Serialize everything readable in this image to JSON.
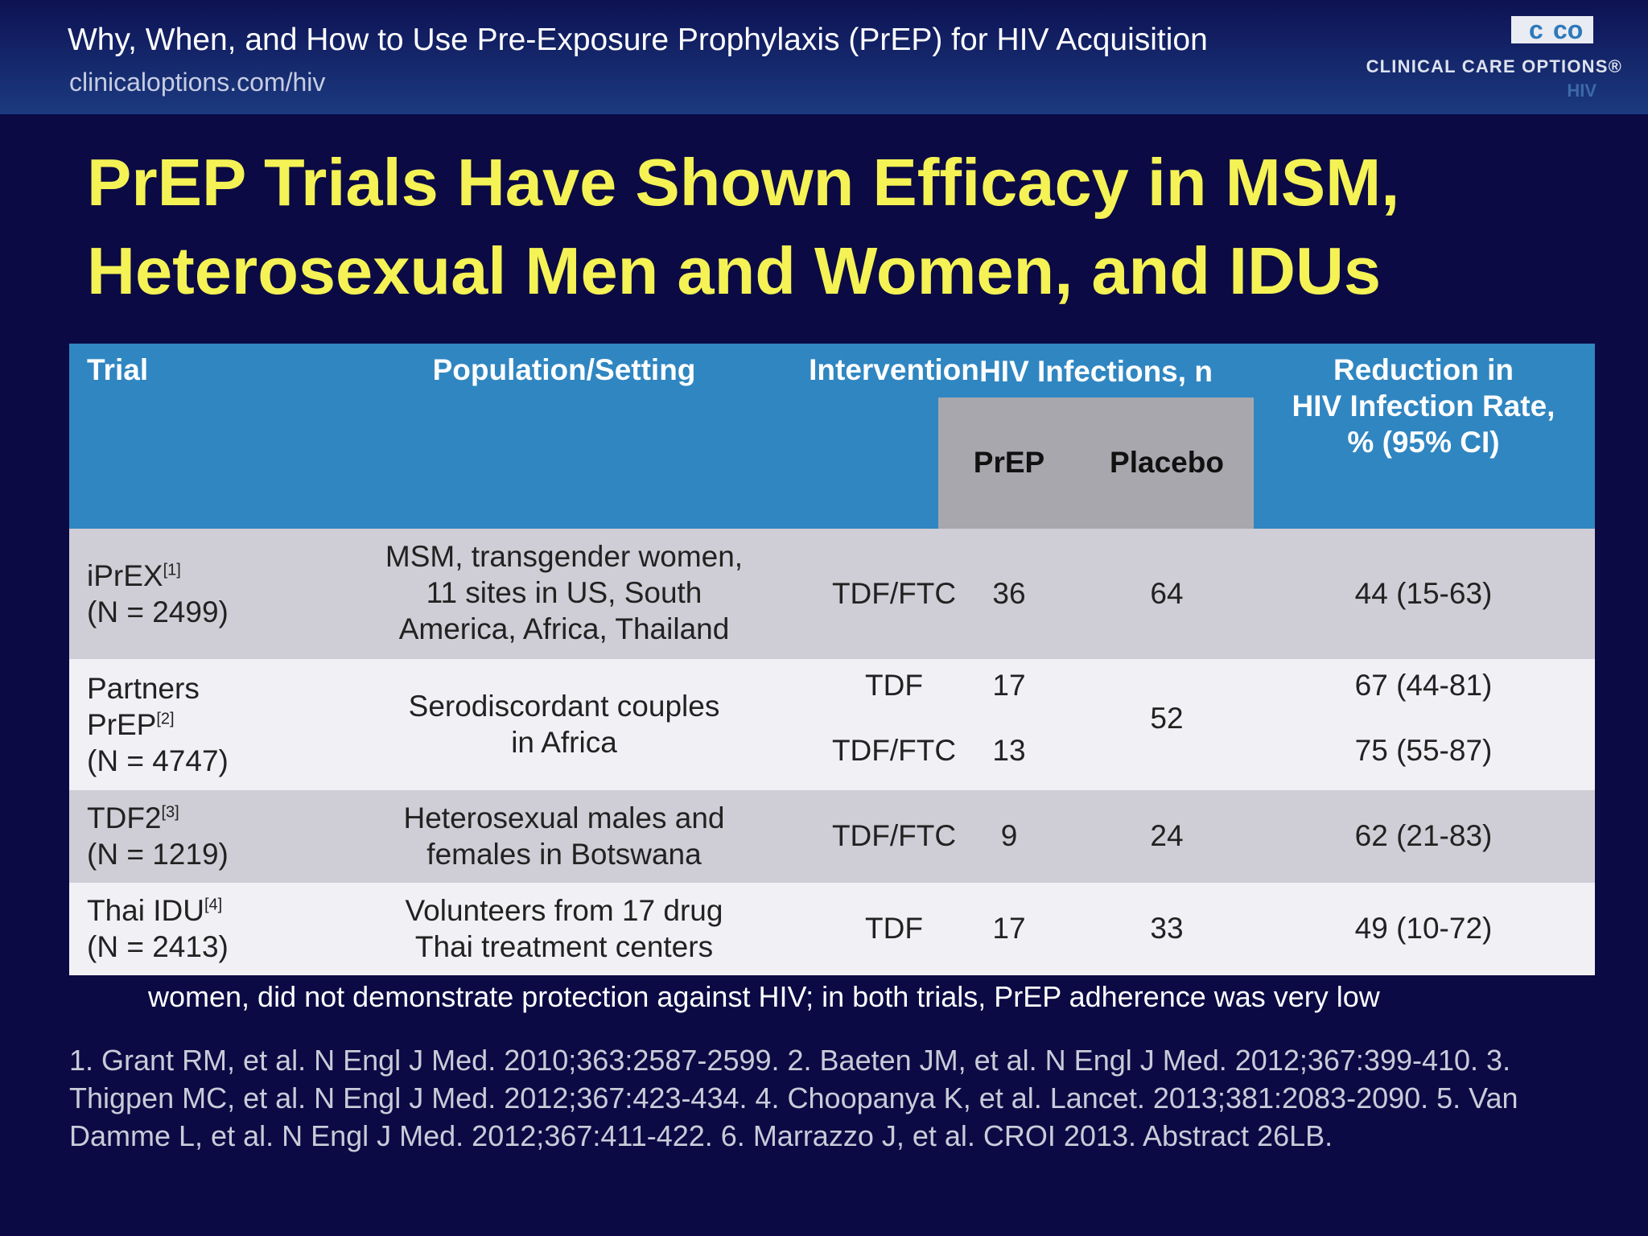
{
  "header": {
    "title": "Why, When, and How to Use Pre-Exposure Prophylaxis (PrEP) for HIV Acquisition",
    "url": "clinicaloptions.com/hiv"
  },
  "logo": {
    "mark_left": "c",
    "mark_right": "co",
    "name": "CLINICAL CARE OPTIONS®",
    "sub": "HIV"
  },
  "slide_title": {
    "line1": "PrEP Trials Have Shown Efficacy in MSM,",
    "line2": "Heterosexual Men and Women, and IDUs"
  },
  "table": {
    "headers": {
      "trial": "Trial",
      "population": "Population/Setting",
      "intervention": "Intervention",
      "infections": "HIV Infections, n",
      "prep": "PrEP",
      "placebo": "Placebo",
      "reduction_l1": "Reduction in",
      "reduction_l2": "HIV Infection Rate,",
      "reduction_l3": "% (95% CI)"
    },
    "rows": [
      {
        "trial_name": "iPrEX",
        "trial_ref": "[1]",
        "trial_n": "(N = 2499)",
        "pop_l1": "MSM, transgender women,",
        "pop_l2": "11 sites in US, South",
        "pop_l3": "America, Africa, Thailand",
        "intervention": "TDF/FTC",
        "prep": "36",
        "placebo": "64",
        "reduction": "44 (15-63)"
      },
      {
        "trial_l1": "Partners",
        "trial_name": "PrEP",
        "trial_ref": "[2]",
        "trial_n": "(N = 4747)",
        "pop_l1": "Serodiscordant couples",
        "pop_l2": "in Africa",
        "intervention_a": "TDF",
        "intervention_b": "TDF/FTC",
        "prep_a": "17",
        "prep_b": "13",
        "placebo": "52",
        "reduction_a": "67 (44-81)",
        "reduction_b": "75 (55-87)"
      },
      {
        "trial_name": "TDF2",
        "trial_ref": "[3]",
        "trial_n": "(N = 1219)",
        "pop_l1": "Heterosexual males and",
        "pop_l2": "females in Botswana",
        "intervention": "TDF/FTC",
        "prep": "9",
        "placebo": "24",
        "reduction": "62 (21-83)"
      },
      {
        "trial_name": "Thai IDU",
        "trial_ref": "[4]",
        "trial_n": "(N = 2413)",
        "pop_l1": "Volunteers from 17 drug",
        "pop_l2": "Thai treatment centers",
        "intervention": "TDF",
        "prep": "17",
        "placebo": "33",
        "reduction": "49 (10-72)"
      }
    ]
  },
  "footnote": "women, did not demonstrate protection against HIV; in both trials, PrEP adherence was very low",
  "references": "1. Grant RM, et al. N Engl J Med. 2010;363:2587-2599. 2. Baeten JM, et al. N Engl J Med. 2012;367:399-410. 3. Thigpen MC, et al. N Engl J Med. 2012;367:423-434. 4. Choopanya K, et al. Lancet. 2013;381:2083-2090. 5. Van Damme L, et al. N Engl J Med. 2012;367:411-422. 6. Marrazzo J, et al. CROI 2013. Abstract 26LB."
}
